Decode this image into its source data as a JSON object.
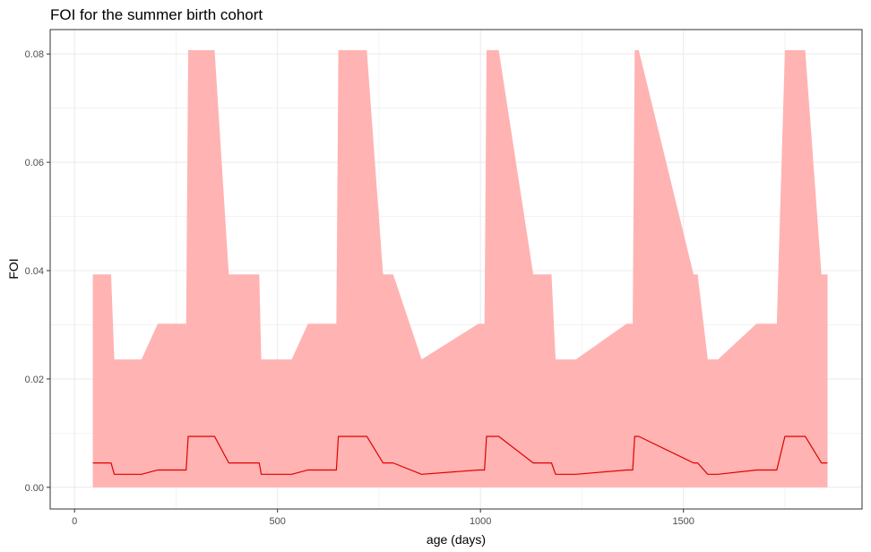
{
  "chart_data": {
    "type": "area",
    "title": "FOI for the summer birth cohort",
    "xlabel": "age (days)",
    "ylabel": "FOI",
    "xlim": [
      -60,
      1940
    ],
    "ylim": [
      -0.004,
      0.0845
    ],
    "x_ticks": [
      0,
      500,
      1000,
      1500
    ],
    "x_tick_labels": [
      "0",
      "500",
      "1000",
      "1500"
    ],
    "y_ticks": [
      0.0,
      0.02,
      0.04,
      0.06,
      0.08
    ],
    "y_tick_labels": [
      "0.00",
      "0.02",
      "0.04",
      "0.06",
      "0.08"
    ],
    "grid": true,
    "legend": "none",
    "colors": {
      "ribbon": "#ffb3b3",
      "line": "#e00000",
      "grid": "#ebebeb",
      "panel_border": "#333333",
      "tick": "#333333"
    },
    "series": [
      {
        "role": "upper",
        "points": [
          [
            45,
            0.0393
          ],
          [
            90,
            0.0393
          ],
          [
            98,
            0.0236
          ],
          [
            165,
            0.0236
          ],
          [
            205,
            0.0302
          ],
          [
            275,
            0.0302
          ],
          [
            280,
            0.0807
          ],
          [
            345,
            0.0807
          ],
          [
            380,
            0.0393
          ],
          [
            455,
            0.0393
          ],
          [
            460,
            0.0236
          ],
          [
            535,
            0.0236
          ],
          [
            575,
            0.0302
          ],
          [
            645,
            0.0302
          ],
          [
            650,
            0.0807
          ],
          [
            720,
            0.0807
          ],
          [
            760,
            0.0393
          ],
          [
            785,
            0.0393
          ],
          [
            855,
            0.0236
          ],
          [
            995,
            0.0302
          ],
          [
            1010,
            0.0302
          ],
          [
            1015,
            0.0807
          ],
          [
            1045,
            0.0807
          ],
          [
            1130,
            0.0393
          ],
          [
            1175,
            0.0393
          ],
          [
            1185,
            0.0236
          ],
          [
            1235,
            0.0236
          ],
          [
            1360,
            0.0302
          ],
          [
            1375,
            0.0302
          ],
          [
            1380,
            0.0807
          ],
          [
            1390,
            0.0807
          ],
          [
            1525,
            0.0393
          ],
          [
            1535,
            0.0393
          ],
          [
            1560,
            0.0236
          ],
          [
            1585,
            0.0236
          ],
          [
            1680,
            0.0302
          ],
          [
            1730,
            0.0302
          ],
          [
            1750,
            0.0807
          ],
          [
            1800,
            0.0807
          ],
          [
            1840,
            0.0393
          ],
          [
            1855,
            0.0393
          ]
        ]
      },
      {
        "role": "lower",
        "points": [
          [
            45,
            0.0
          ],
          [
            1855,
            0.0
          ]
        ]
      },
      {
        "role": "median",
        "points": [
          [
            45,
            0.0045
          ],
          [
            90,
            0.0045
          ],
          [
            98,
            0.0024
          ],
          [
            165,
            0.0024
          ],
          [
            205,
            0.0032
          ],
          [
            275,
            0.0032
          ],
          [
            280,
            0.0094
          ],
          [
            345,
            0.0094
          ],
          [
            380,
            0.0045
          ],
          [
            455,
            0.0045
          ],
          [
            460,
            0.0024
          ],
          [
            535,
            0.0024
          ],
          [
            575,
            0.0032
          ],
          [
            645,
            0.0032
          ],
          [
            650,
            0.0094
          ],
          [
            720,
            0.0094
          ],
          [
            760,
            0.0045
          ],
          [
            785,
            0.0045
          ],
          [
            855,
            0.0024
          ],
          [
            995,
            0.0032
          ],
          [
            1010,
            0.0032
          ],
          [
            1015,
            0.0094
          ],
          [
            1045,
            0.0094
          ],
          [
            1130,
            0.0045
          ],
          [
            1175,
            0.0045
          ],
          [
            1185,
            0.0024
          ],
          [
            1235,
            0.0024
          ],
          [
            1360,
            0.0032
          ],
          [
            1375,
            0.0032
          ],
          [
            1380,
            0.0094
          ],
          [
            1390,
            0.0094
          ],
          [
            1525,
            0.0045
          ],
          [
            1535,
            0.0045
          ],
          [
            1560,
            0.0024
          ],
          [
            1585,
            0.0024
          ],
          [
            1680,
            0.0032
          ],
          [
            1730,
            0.0032
          ],
          [
            1750,
            0.0094
          ],
          [
            1800,
            0.0094
          ],
          [
            1840,
            0.0045
          ],
          [
            1855,
            0.0045
          ]
        ]
      }
    ]
  }
}
